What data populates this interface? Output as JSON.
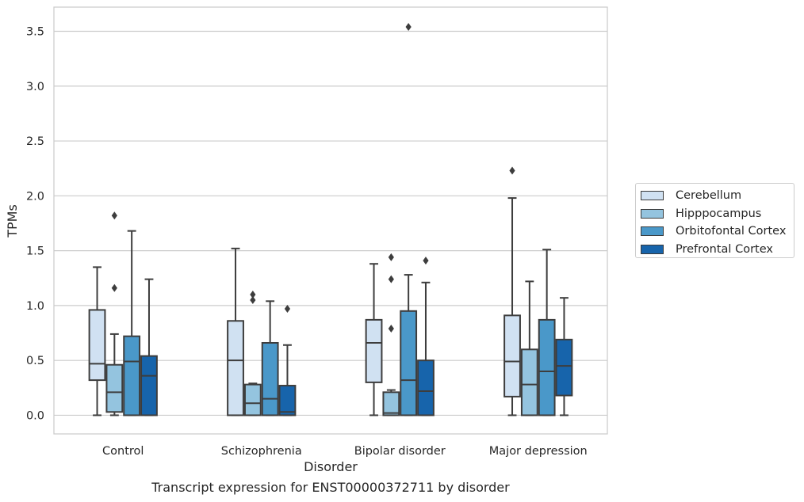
{
  "chart_data": {
    "type": "box",
    "xlabel": "Disorder",
    "ylabel": "TPMs",
    "caption": "Transcript expression for ENST00000372711 by disorder",
    "ylim": [
      -0.17,
      3.72
    ],
    "yticks": [
      "0.0",
      "0.5",
      "1.0",
      "1.5",
      "2.0",
      "2.5",
      "3.0",
      "3.5"
    ],
    "grid": "horizontal",
    "legend_position": "right",
    "categories": [
      "Control",
      "Schizophrenia",
      "Bipolar disorder",
      "Major depression"
    ],
    "series": [
      {
        "name": "Cerebellum",
        "color": "#d0e1f2",
        "boxes": [
          {
            "whislo": 0.0,
            "q1": 0.32,
            "med": 0.47,
            "q3": 0.96,
            "whishi": 1.35,
            "fliers": []
          },
          {
            "whislo": 0.0,
            "q1": 0.0,
            "med": 0.5,
            "q3": 0.86,
            "whishi": 1.52,
            "fliers": []
          },
          {
            "whislo": 0.0,
            "q1": 0.3,
            "med": 0.66,
            "q3": 0.87,
            "whishi": 1.38,
            "fliers": []
          },
          {
            "whislo": 0.0,
            "q1": 0.17,
            "med": 0.49,
            "q3": 0.91,
            "whishi": 1.98,
            "fliers": [
              2.23
            ]
          }
        ]
      },
      {
        "name": "Hipppocampus",
        "color": "#94c4df",
        "boxes": [
          {
            "whislo": 0.0,
            "q1": 0.03,
            "med": 0.21,
            "q3": 0.46,
            "whishi": 0.74,
            "fliers": [
              1.16,
              1.82
            ]
          },
          {
            "whislo": 0.0,
            "q1": 0.0,
            "med": 0.11,
            "q3": 0.28,
            "whishi": 0.29,
            "fliers": [
              1.05,
              1.1
            ]
          },
          {
            "whislo": 0.0,
            "q1": 0.0,
            "med": 0.02,
            "q3": 0.21,
            "whishi": 0.23,
            "fliers": [
              0.79,
              1.24,
              1.44
            ]
          },
          {
            "whislo": 0.0,
            "q1": 0.0,
            "med": 0.28,
            "q3": 0.6,
            "whishi": 1.22,
            "fliers": []
          }
        ]
      },
      {
        "name": "Orbitofontal Cortex",
        "color": "#4a98c9",
        "boxes": [
          {
            "whislo": 0.0,
            "q1": 0.0,
            "med": 0.49,
            "q3": 0.72,
            "whishi": 1.68,
            "fliers": []
          },
          {
            "whislo": 0.0,
            "q1": 0.0,
            "med": 0.15,
            "q3": 0.66,
            "whishi": 1.04,
            "fliers": []
          },
          {
            "whislo": 0.0,
            "q1": 0.0,
            "med": 0.32,
            "q3": 0.95,
            "whishi": 1.28,
            "fliers": [
              3.54
            ]
          },
          {
            "whislo": 0.0,
            "q1": 0.0,
            "med": 0.4,
            "q3": 0.87,
            "whishi": 1.51,
            "fliers": []
          }
        ]
      },
      {
        "name": "Prefrontal Cortex",
        "color": "#1764ab",
        "boxes": [
          {
            "whislo": 0.0,
            "q1": 0.0,
            "med": 0.36,
            "q3": 0.54,
            "whishi": 1.24,
            "fliers": []
          },
          {
            "whislo": 0.0,
            "q1": 0.0,
            "med": 0.03,
            "q3": 0.27,
            "whishi": 0.64,
            "fliers": [
              0.97
            ]
          },
          {
            "whislo": 0.0,
            "q1": 0.0,
            "med": 0.22,
            "q3": 0.5,
            "whishi": 1.21,
            "fliers": [
              1.41
            ]
          },
          {
            "whislo": 0.0,
            "q1": 0.18,
            "med": 0.45,
            "q3": 0.69,
            "whishi": 1.07,
            "fliers": []
          }
        ]
      }
    ]
  }
}
